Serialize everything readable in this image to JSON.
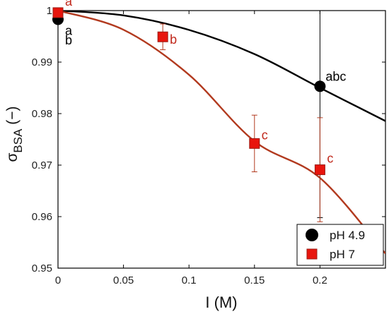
{
  "chart_data": {
    "type": "scatter",
    "xlabel": "I (M)",
    "ylabel_symbol": "σ",
    "ylabel_subscript": "BSA",
    "ylabel_unit": "(−)",
    "xlim": [
      0,
      0.25
    ],
    "ylim": [
      0.95,
      1.0
    ],
    "x_ticks": [
      0,
      0.05,
      0.1,
      0.15,
      0.2
    ],
    "x_tick_labels": [
      "0",
      "0.05",
      "0.1",
      "0.15",
      "0.2"
    ],
    "y_ticks": [
      0.95,
      0.96,
      0.97,
      0.98,
      0.99,
      1.0
    ],
    "y_tick_labels": [
      "0.95",
      "0.96",
      "0.97",
      "0.98",
      "0.99",
      "1"
    ],
    "grid": false,
    "legend_position": "bottom-right",
    "series": [
      {
        "name": "pH 4.9",
        "marker": "circle",
        "color": "#000000",
        "points": [
          {
            "x": 0,
            "y": 0.9983,
            "err_low": 0.0003,
            "err_high": 0.0003,
            "label": "a"
          },
          {
            "x": 0.2,
            "y": 0.9853,
            "err_low": 0.0255,
            "err_high": 0.0147,
            "label": "abc"
          }
        ],
        "fit_curve_y": [
          {
            "x": 0,
            "y": 1.0
          },
          {
            "x": 0.05,
            "y": 0.99906
          },
          {
            "x": 0.1,
            "y": 0.99625
          },
          {
            "x": 0.15,
            "y": 0.99156
          },
          {
            "x": 0.2,
            "y": 0.985
          },
          {
            "x": 0.25,
            "y": 0.97856
          }
        ]
      },
      {
        "name": "pH 7",
        "marker": "square",
        "color": "#e8150d",
        "curve_color": "#b23a1f",
        "points": [
          {
            "x": 0,
            "y": 0.9996,
            "err_low": 0.0003,
            "err_high": 0.0003,
            "label": "a"
          },
          {
            "x": 0.08,
            "y": 0.9949,
            "err_low": 0.0025,
            "err_high": 0.0025,
            "label": "b"
          },
          {
            "x": 0.15,
            "y": 0.9742,
            "err_low": 0.0055,
            "err_high": 0.0055,
            "label": "c"
          },
          {
            "x": 0.2,
            "y": 0.9691,
            "err_low": 0.0101,
            "err_high": 0.0101,
            "label": "c"
          }
        ],
        "fit_curve_y": [
          {
            "x": 0,
            "y": 1.0
          },
          {
            "x": 0.05,
            "y": 0.99628
          },
          {
            "x": 0.1,
            "y": 0.98754
          },
          {
            "x": 0.15,
            "y": 0.97463
          },
          {
            "x": 0.2,
            "y": 0.96752
          },
          {
            "x": 0.25,
            "y": 0.95284
          }
        ]
      }
    ],
    "extra_annotations": [
      {
        "x": 0,
        "y": 0.9967,
        "text": "b"
      }
    ]
  }
}
